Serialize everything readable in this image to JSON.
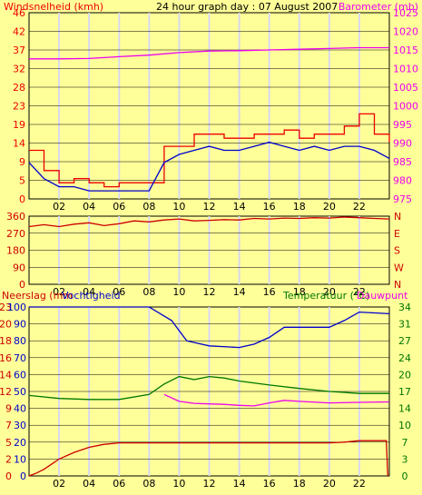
{
  "header": {
    "left": "Windsnelheid (kmh)",
    "center": "24 hour graph day : 07 August 2007",
    "right": "Barometer (mb)"
  },
  "section_labels": {
    "neerslag": "Neerslag (mm",
    "vochtigheid": "Vochtigheid",
    "temperatuur": "Temperatuur (°C)",
    "dauwpunt": "Dauwpunt"
  },
  "colors": {
    "background": "#FFFF99",
    "grid": "#D8D8F0",
    "wind_speed": "#EE0000",
    "wind_avg": "#0000CC",
    "barometer": "#EE00EE",
    "direction": "#CC0000",
    "humidity": "#0000CC",
    "temperature": "#007700",
    "dewpoint": "#EE00EE",
    "rain": "#CC0000"
  },
  "chart_data": [
    {
      "type": "line",
      "xticks": [
        "02",
        "04",
        "06",
        "08",
        "10",
        "12",
        "14",
        "16",
        "18",
        "20",
        "22"
      ],
      "y_left_ticks": [
        "0",
        "5",
        "9",
        "14",
        "19",
        "23",
        "28",
        "32",
        "37",
        "42",
        "46"
      ],
      "y_right_ticks": [
        "975",
        "980",
        "985",
        "990",
        "995",
        "1000",
        "1005",
        "1010",
        "1015",
        "1020",
        "1025"
      ],
      "ylim_left": [
        0,
        46
      ],
      "ylim_right": [
        975,
        1025
      ],
      "series": [
        {
          "name": "Windsnelheid (kmh)",
          "axis": "left",
          "x": [
            0,
            1,
            2,
            3,
            4,
            5,
            6,
            7,
            8,
            9,
            10,
            11,
            12,
            13,
            14,
            15,
            16,
            17,
            18,
            19,
            20,
            21,
            22,
            23,
            24
          ],
          "values": [
            12,
            7,
            4,
            5,
            4,
            3,
            4,
            4,
            4,
            13,
            13,
            16,
            16,
            15,
            15,
            16,
            16,
            17,
            15,
            16,
            16,
            18,
            21,
            16,
            14
          ]
        },
        {
          "name": "",
          "axis": "left",
          "x": [
            0,
            1,
            2,
            3,
            4,
            5,
            6,
            7,
            8,
            9,
            10,
            11,
            12,
            13,
            14,
            15,
            16,
            17,
            18,
            19,
            20,
            21,
            22,
            23,
            24
          ],
          "values": [
            9,
            5,
            3,
            3,
            2,
            2,
            2,
            2,
            2,
            9,
            11,
            12,
            13,
            12,
            12,
            13,
            14,
            13,
            12,
            13,
            12,
            13,
            13,
            12,
            10
          ]
        },
        {
          "name": "Barometer (mb)",
          "axis": "right",
          "x": [
            0,
            2,
            4,
            6,
            8,
            10,
            12,
            14,
            16,
            18,
            20,
            22,
            24
          ],
          "values": [
            1012.6,
            1012.6,
            1012.7,
            1013.2,
            1013.6,
            1014.3,
            1014.7,
            1014.8,
            1015.0,
            1015.2,
            1015.4,
            1015.6,
            1015.6
          ]
        }
      ]
    },
    {
      "type": "line",
      "xticks": [
        "02",
        "04",
        "06",
        "08",
        "10",
        "12",
        "14",
        "16",
        "18",
        "20",
        "22"
      ],
      "y_left_ticks": [
        "0",
        "90",
        "180",
        "270",
        "360"
      ],
      "y_right_ticks": [
        "N",
        "W",
        "S",
        "E",
        "N"
      ],
      "ylim": [
        0,
        360
      ],
      "series": [
        {
          "name": "",
          "x": [
            0,
            1,
            2,
            3,
            4,
            5,
            6,
            7,
            8,
            9,
            10,
            11,
            12,
            13,
            14,
            15,
            16,
            17,
            18,
            19,
            20,
            21,
            22,
            23,
            24
          ],
          "values": [
            305,
            315,
            305,
            318,
            325,
            310,
            320,
            335,
            330,
            340,
            345,
            335,
            338,
            342,
            340,
            348,
            345,
            350,
            348,
            352,
            350,
            355,
            352,
            348,
            345
          ]
        }
      ]
    },
    {
      "type": "line",
      "xticks": [
        "02",
        "04",
        "06",
        "08",
        "10",
        "12",
        "14",
        "16",
        "18",
        "20",
        "22"
      ],
      "y_left_ticks": [
        "0",
        "2",
        "5",
        "7",
        "9",
        "12",
        "14",
        "16",
        "18",
        "20",
        "23"
      ],
      "y_left2_ticks": [
        "0",
        "10",
        "20",
        "30",
        "40",
        "50",
        "60",
        "70",
        "80",
        "90",
        "100"
      ],
      "y_right_ticks": [
        "0",
        "3",
        "7",
        "10",
        "14",
        "17",
        "20",
        "24",
        "27",
        "31",
        "34"
      ],
      "ylim_rain": [
        0,
        23
      ],
      "ylim_humidity": [
        0,
        100
      ],
      "ylim_temperature": [
        0,
        34
      ],
      "series": [
        {
          "name": "Vochtigheid",
          "axis": "humidity",
          "x": [
            0,
            4,
            8,
            9.5,
            10.5,
            12,
            14,
            15,
            16,
            17,
            18,
            19,
            20,
            21,
            22,
            24
          ],
          "values": [
            100,
            100,
            100,
            92,
            80,
            77,
            76,
            78,
            82,
            88,
            88,
            88,
            88,
            92,
            97,
            96
          ]
        },
        {
          "name": "Temperatuur (°C)",
          "axis": "temperature",
          "x": [
            0,
            2,
            4,
            6,
            8,
            9,
            10,
            11,
            12,
            13,
            14,
            16,
            18,
            20,
            22,
            24
          ],
          "values": [
            16.2,
            15.6,
            15.4,
            15.4,
            16.4,
            18.5,
            20.0,
            19.4,
            20.0,
            19.7,
            19.1,
            18.3,
            17.6,
            17.0,
            16.6,
            16.6
          ]
        },
        {
          "name": "Dauwpunt",
          "axis": "temperature",
          "x": [
            9,
            10,
            11,
            12,
            13,
            14,
            15,
            16,
            17,
            18,
            20,
            22,
            24
          ],
          "values": [
            16.4,
            15.0,
            14.6,
            14.5,
            14.4,
            14.2,
            14.1,
            14.7,
            15.2,
            15.0,
            14.7,
            14.8,
            14.9
          ]
        },
        {
          "name": "Neerslag (mm",
          "axis": "rain",
          "x": [
            0,
            0.5,
            1,
            1.5,
            2,
            3,
            4,
            5,
            6,
            8,
            10,
            12,
            14,
            16,
            18,
            20,
            21,
            22,
            23.8,
            23.9
          ],
          "values": [
            0,
            0.4,
            0.9,
            1.6,
            2.3,
            3.2,
            3.9,
            4.3,
            4.5,
            4.5,
            4.5,
            4.5,
            4.5,
            4.5,
            4.5,
            4.5,
            4.6,
            4.8,
            4.8,
            0
          ]
        }
      ]
    }
  ]
}
